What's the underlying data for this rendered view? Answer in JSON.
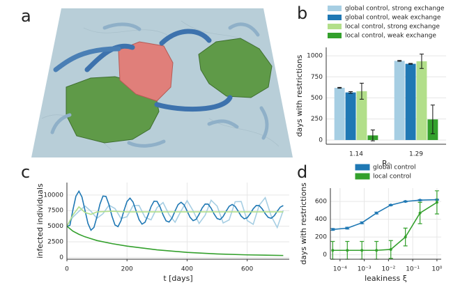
{
  "illustration": {
    "label": "a"
  },
  "chart_data": [
    {
      "type": "bar",
      "label": "b",
      "xlabel": "R₀",
      "ylabel": "days with restrictions",
      "categories": [
        "1.14",
        "1.29"
      ],
      "series": [
        {
          "name": "global control, strong exchange",
          "color": "#a6cee3",
          "values": [
            620,
            940
          ],
          "errors": [
            5,
            5
          ]
        },
        {
          "name": "global control, weak exchange",
          "color": "#1f78b4",
          "values": [
            565,
            905
          ],
          "errors": [
            10,
            5
          ]
        },
        {
          "name": "local control, strong exchange",
          "color": "#b2df8a",
          "values": [
            580,
            935
          ],
          "errors": [
            95,
            85
          ]
        },
        {
          "name": "local control, weak exchange",
          "color": "#33a02c",
          "values": [
            55,
            245
          ],
          "errors": [
            65,
            170
          ]
        }
      ],
      "ylim": [
        -50,
        1100
      ],
      "yticks": [
        0,
        250,
        500,
        750,
        1000
      ],
      "grid": true,
      "legend": "top"
    },
    {
      "type": "line",
      "label": "c",
      "xlabel": "t [days]",
      "ylabel": "infected individuals",
      "series": [
        {
          "color": "#a6cee3",
          "x": [
            0,
            20,
            40,
            60,
            80,
            100,
            120,
            140,
            160,
            180,
            200,
            220,
            240,
            260,
            280,
            300,
            320,
            340,
            360,
            380,
            400,
            420,
            440,
            460,
            480,
            500,
            520,
            540,
            560,
            580,
            600,
            620,
            640,
            660,
            680,
            700,
            720
          ],
          "values": [
            5000,
            6464,
            7383,
            8250,
            7392,
            6268,
            6999,
            8372,
            7835,
            6238,
            6517,
            8298,
            8335,
            6427,
            6025,
            7991,
            8791,
            6848,
            5629,
            7461,
            9100,
            7470,
            5432,
            6766,
            9164,
            8214,
            5515,
            6006,
            8926,
            8963,
            5915,
            5303,
            8370,
            9583,
            6615,
            4793,
            7539
          ]
        },
        {
          "color": "#1f78b4",
          "x": [
            0,
            10,
            20,
            30,
            40,
            50,
            60,
            70,
            80,
            90,
            100,
            110,
            120,
            130,
            140,
            150,
            160,
            170,
            180,
            190,
            200,
            210,
            220,
            230,
            240,
            250,
            260,
            270,
            280,
            290,
            300,
            310,
            320,
            330,
            340,
            350,
            360,
            370,
            380,
            390,
            400,
            410,
            420,
            430,
            440,
            450,
            460,
            470,
            480,
            490,
            500,
            510,
            520,
            530,
            540,
            550,
            560,
            570,
            580,
            590,
            600,
            610,
            620,
            630,
            640,
            650,
            660,
            670,
            680,
            690,
            700,
            710,
            720
          ],
          "values": [
            5000,
            5136,
            7630,
            9817,
            10620,
            9692,
            7590,
            5447,
            4349,
            4811,
            6517,
            8543,
            9834,
            9774,
            8456,
            6607,
            5201,
            4929,
            5882,
            7512,
            8962,
            9498,
            8887,
            7493,
            6063,
            5325,
            5630,
            6773,
            8139,
            9018,
            8982,
            8089,
            6825,
            5857,
            5663,
            6317,
            7447,
            8462,
            8843,
            8420,
            7437,
            6419,
            5886,
            6098,
            6919,
            7911,
            8556,
            8537,
            7883,
            6947,
            6221,
            6069,
            6557,
            7412,
            8190,
            8489,
            8168,
            7407,
            6610,
            6185,
            6346,
            6996,
            7790,
            8314,
            8305,
            7776,
            7010,
            6408,
            6277,
            6679,
            7394,
            8052,
            8310
          ]
        },
        {
          "color": "#b2df8a",
          "x": [
            0,
            20,
            40,
            60,
            80,
            100,
            150,
            200,
            300,
            400,
            500,
            600,
            720
          ],
          "values": [
            5000,
            6800,
            8100,
            7200,
            6900,
            7300,
            7400,
            7300,
            7300,
            7300,
            7300,
            7300,
            7300
          ]
        },
        {
          "color": "#33a02c",
          "x": [
            0,
            20,
            40,
            60,
            80,
            100,
            150,
            200,
            300,
            400,
            500,
            600,
            720
          ],
          "values": [
            5000,
            4200,
            3700,
            3300,
            3000,
            2700,
            2200,
            1800,
            1200,
            800,
            550,
            400,
            300
          ]
        }
      ],
      "xlim": [
        0,
        740
      ],
      "xticks": [
        0,
        200,
        400,
        600
      ],
      "ylim": [
        -300,
        12000
      ],
      "yticks": [
        0,
        2500,
        5000,
        7500,
        10000
      ],
      "grid": true
    },
    {
      "type": "line",
      "label": "d",
      "xlabel": "leakiness ξ",
      "ylabel": "days with restrictions",
      "xscale": "log",
      "markers": true,
      "series": [
        {
          "name": "global control",
          "color": "#1f78b4",
          "x": [
            5e-05,
            0.0002,
            0.0008,
            0.0032,
            0.0125,
            0.05,
            0.2,
            1
          ],
          "values": [
            285,
            300,
            360,
            470,
            560,
            600,
            615,
            620
          ],
          "errors": [
            10,
            10,
            10,
            10,
            5,
            5,
            5,
            5
          ]
        },
        {
          "name": "local control",
          "color": "#33a02c",
          "x": [
            5e-05,
            0.0002,
            0.0008,
            0.0032,
            0.0125,
            0.05,
            0.2,
            1
          ],
          "values": [
            50,
            50,
            50,
            50,
            60,
            200,
            470,
            590
          ],
          "errors": [
            100,
            100,
            100,
            100,
            100,
            100,
            120,
            130
          ]
        }
      ],
      "xlim": [
        4e-05,
        1.5
      ],
      "xticks": [
        {
          "value": 0.0001,
          "label": "10⁻⁴"
        },
        {
          "value": 0.001,
          "label": "10⁻³"
        },
        {
          "value": 0.01,
          "label": "10⁻²"
        },
        {
          "value": 0.1,
          "label": "10⁻¹"
        },
        {
          "value": 1,
          "label": "10⁰"
        }
      ],
      "ylim": [
        -50,
        750
      ],
      "yticks": [
        0,
        200,
        400,
        600
      ],
      "grid": true,
      "legend": "top"
    }
  ]
}
